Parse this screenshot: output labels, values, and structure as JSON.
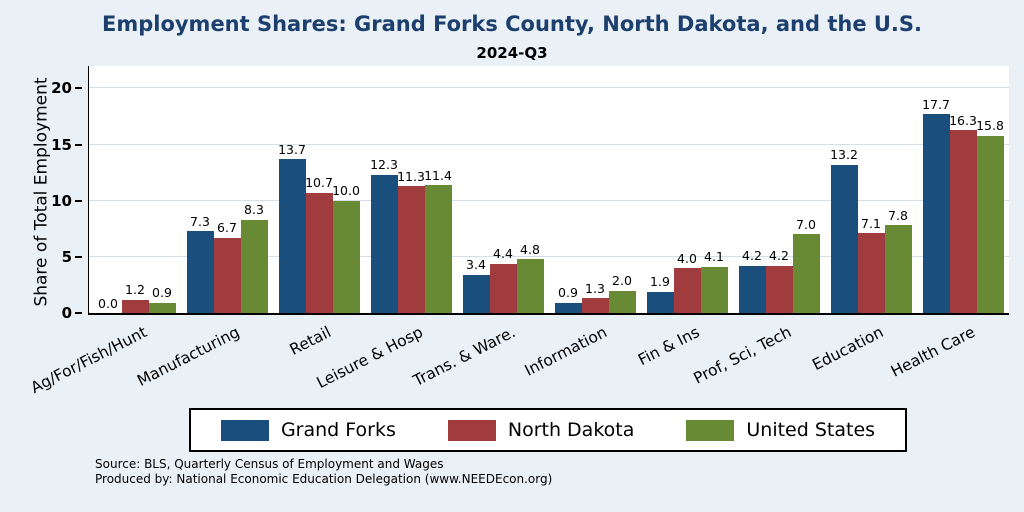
{
  "title": "Employment Shares: Grand Forks County, North Dakota, and the U.S.",
  "subtitle": "2024-Q3",
  "chart_data": {
    "type": "bar",
    "categories": [
      "Ag/For/Fish/Hunt",
      "Manufacturing",
      "Retail",
      "Leisure & Hosp",
      "Trans. & Ware.",
      "Information",
      "Fin & Ins",
      "Prof, Sci, Tech",
      "Education",
      "Health Care"
    ],
    "series": [
      {
        "name": "Grand Forks",
        "color": "#1a4f7d",
        "values": [
          0.0,
          7.3,
          13.7,
          12.3,
          3.4,
          0.9,
          1.9,
          4.2,
          13.2,
          17.7
        ]
      },
      {
        "name": "North Dakota",
        "color": "#a03c3e",
        "values": [
          1.2,
          6.7,
          10.7,
          11.3,
          4.4,
          1.3,
          4.0,
          4.2,
          7.1,
          16.3
        ]
      },
      {
        "name": "United States",
        "color": "#688a35",
        "values": [
          0.9,
          8.3,
          10.0,
          11.4,
          4.8,
          2.0,
          4.1,
          7.0,
          7.8,
          15.8
        ]
      }
    ],
    "title": "Employment Shares: Grand Forks County, North Dakota, and the U.S.",
    "subtitle": "2024-Q3",
    "xlabel": "",
    "ylabel": "Share of Total Employment",
    "ylim": [
      0,
      20
    ],
    "yticks": [
      0,
      5,
      10,
      15,
      20
    ],
    "grid": true,
    "legend_position": "bottom",
    "value_labels": true
  },
  "source": {
    "line1": "Source: BLS, Quarterly Census of Employment and Wages",
    "line2": "Produced by: National Economic Education Delegation (www.NEEDEcon.org)"
  },
  "colors": {
    "background": "#e9f0f6",
    "plot_background": "#ffffff",
    "title": "#1c3f6e",
    "gridline": "#d4dfe8"
  }
}
